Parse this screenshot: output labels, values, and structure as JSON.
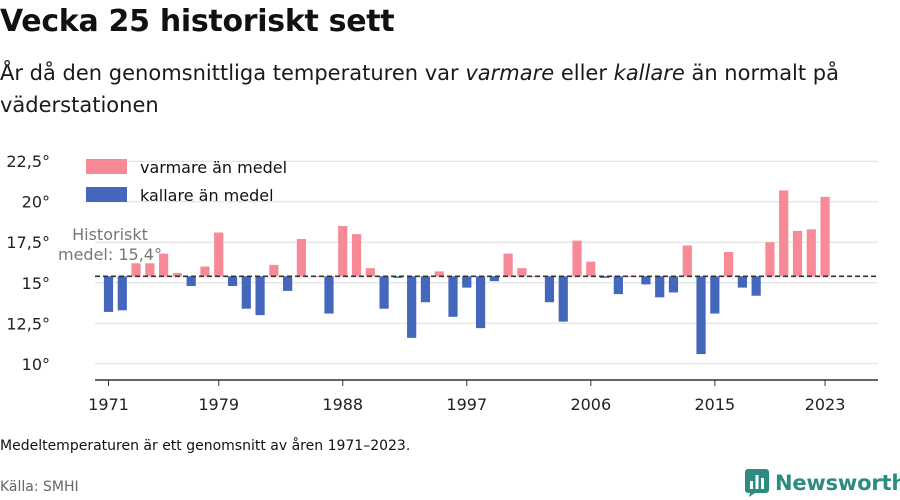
{
  "title": "Vecka 25 historiskt sett",
  "subtitle": {
    "part1": "År då den genomsnittliga temperaturen var ",
    "em1": "varmare",
    "part2": " eller ",
    "em2": "kallare",
    "part3": " än normalt på väderstationen"
  },
  "note": "Medeltemperaturen är ett genomsnitt av åren 1971–2023.",
  "source": "Källa: SMHI",
  "brand": {
    "name": "Newsworthy",
    "icon": "newsworthy-logo-icon"
  },
  "colors": {
    "warmer": "#f78a96",
    "colder": "#4466bb",
    "grid": "#dddddd",
    "axis": "#333333",
    "reference": "#333333",
    "brand": "#2e8b82"
  },
  "chart_data": {
    "type": "bar",
    "x": [
      1971,
      1972,
      1973,
      1974,
      1975,
      1976,
      1977,
      1978,
      1979,
      1980,
      1981,
      1982,
      1983,
      1984,
      1985,
      1986,
      1987,
      1988,
      1989,
      1990,
      1991,
      1992,
      1993,
      1994,
      1995,
      1996,
      1997,
      1998,
      1999,
      2000,
      2001,
      2002,
      2003,
      2004,
      2005,
      2006,
      2007,
      2008,
      2009,
      2010,
      2011,
      2012,
      2013,
      2014,
      2015,
      2016,
      2017,
      2018,
      2019,
      2020,
      2021,
      2022,
      2023
    ],
    "values": [
      13.2,
      13.3,
      16.2,
      16.2,
      16.8,
      15.6,
      14.8,
      16.0,
      18.1,
      14.8,
      13.4,
      13.0,
      16.1,
      14.5,
      17.7,
      15.4,
      13.1,
      18.5,
      18.0,
      15.9,
      13.4,
      15.3,
      11.6,
      13.8,
      15.7,
      12.9,
      14.7,
      12.2,
      15.1,
      16.8,
      15.9,
      15.4,
      13.8,
      12.6,
      17.6,
      16.3,
      15.3,
      14.3,
      15.4,
      14.9,
      14.1,
      14.4,
      17.3,
      10.6,
      13.1,
      16.9,
      14.7,
      14.2,
      17.5,
      20.7,
      18.2,
      18.3,
      20.3
    ],
    "baseline": 15.4,
    "baseline_label": [
      "Historiskt",
      "medel: 15,4°"
    ],
    "ylim": [
      9,
      23.5
    ],
    "y_ticks": [
      10,
      12.5,
      15,
      17.5,
      20,
      22.5
    ],
    "y_tick_labels": [
      "10°",
      "12,5°",
      "15°",
      "17,5°",
      "20°",
      "22,5°"
    ],
    "x_ticks": [
      1971,
      1979,
      1988,
      1997,
      2006,
      2015,
      2023
    ],
    "x_tick_labels": [
      "1971",
      "1979",
      "1988",
      "1997",
      "2006",
      "2015",
      "2023"
    ],
    "xlabel": "",
    "ylabel": "",
    "grid": true,
    "legend": [
      {
        "name": "varmare än medel",
        "color": "#f78a96"
      },
      {
        "name": "kallare än medel",
        "color": "#4466bb"
      }
    ],
    "legend_position": "top-left"
  }
}
